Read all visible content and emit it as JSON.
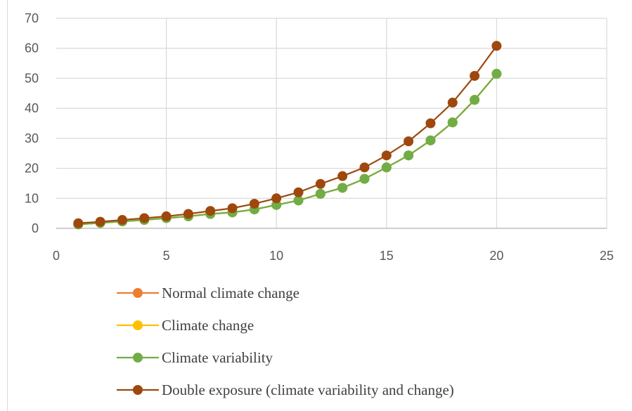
{
  "chart_data": {
    "type": "line",
    "x": [
      1,
      2,
      3,
      4,
      5,
      6,
      7,
      8,
      9,
      10,
      11,
      12,
      13,
      14,
      15,
      16,
      17,
      18,
      19,
      20
    ],
    "xlim": [
      0,
      25
    ],
    "ylim": [
      0,
      70
    ],
    "x_ticks": [
      0,
      5,
      10,
      15,
      20,
      25
    ],
    "y_ticks": [
      0,
      10,
      20,
      30,
      40,
      50,
      60,
      70
    ],
    "x_tick_labels": [
      "0",
      "5",
      "10",
      "15",
      "20",
      "25"
    ],
    "y_tick_labels": [
      "0",
      "10",
      "20",
      "30",
      "40",
      "50",
      "60",
      "70"
    ],
    "grid": true,
    "legend_position": "bottom",
    "title": "",
    "xlabel": "",
    "ylabel": "",
    "series": [
      {
        "name": "Normal climate change",
        "color": "#ed7d31",
        "values": [
          1.3,
          1.8,
          2.3,
          2.8,
          3.4,
          4.0,
          4.8,
          5.3,
          6.3,
          7.8,
          9.3,
          11.5,
          13.5,
          16.5,
          20.3,
          24.3,
          29.3,
          35.3,
          42.8,
          51.5
        ]
      },
      {
        "name": "Climate change",
        "color": "#ffc000",
        "values": [
          1.3,
          1.8,
          2.3,
          2.8,
          3.4,
          4.0,
          4.8,
          5.3,
          6.3,
          7.8,
          9.3,
          11.5,
          13.5,
          16.5,
          20.3,
          24.3,
          29.3,
          35.3,
          42.8,
          51.5
        ]
      },
      {
        "name": "Climate variability",
        "color": "#70ad47",
        "values": [
          1.3,
          1.8,
          2.3,
          2.8,
          3.4,
          4.0,
          4.8,
          5.3,
          6.3,
          7.8,
          9.3,
          11.5,
          13.5,
          16.5,
          20.3,
          24.3,
          29.3,
          35.3,
          42.8,
          51.5
        ]
      },
      {
        "name": "Double exposure (climate variability and change)",
        "color": "#9e480e",
        "values": [
          1.7,
          2.2,
          2.8,
          3.4,
          4.0,
          4.8,
          5.8,
          6.7,
          8.2,
          10.0,
          12.0,
          14.8,
          17.4,
          20.3,
          24.3,
          29.0,
          35.0,
          41.9,
          50.8,
          60.8
        ]
      }
    ]
  }
}
